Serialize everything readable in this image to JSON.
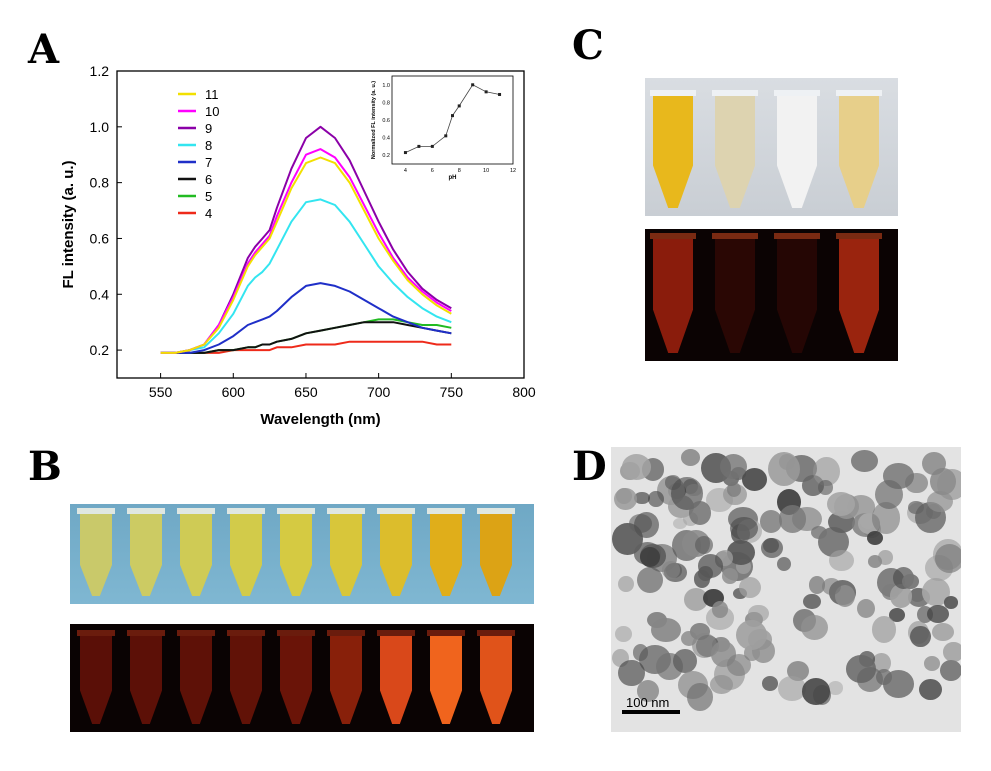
{
  "panels": {
    "a": "A",
    "b": "B",
    "c": "C",
    "d": "D"
  },
  "chart_data": {
    "type": "line",
    "xlabel": "Wavelength (nm)",
    "ylabel": "FL intensity (a. u.)",
    "xlim": [
      520,
      800
    ],
    "ylim": [
      0.1,
      1.2
    ],
    "xticks": [
      550,
      600,
      650,
      700,
      750,
      800
    ],
    "yticks": [
      0.2,
      0.4,
      0.6,
      0.8,
      1.0,
      1.2
    ],
    "legend_placement": "top-left",
    "x": [
      550,
      560,
      570,
      580,
      590,
      600,
      610,
      615,
      620,
      625,
      630,
      640,
      650,
      660,
      670,
      680,
      690,
      700,
      710,
      720,
      730,
      740,
      750
    ],
    "series": [
      {
        "name": "11",
        "color": "#f2e000",
        "values": [
          0.19,
          0.19,
          0.2,
          0.22,
          0.28,
          0.38,
          0.5,
          0.54,
          0.57,
          0.6,
          0.66,
          0.78,
          0.87,
          0.89,
          0.87,
          0.8,
          0.7,
          0.6,
          0.52,
          0.45,
          0.4,
          0.36,
          0.33
        ]
      },
      {
        "name": "10",
        "color": "#ff00ff",
        "values": [
          0.19,
          0.19,
          0.2,
          0.22,
          0.29,
          0.39,
          0.51,
          0.55,
          0.58,
          0.61,
          0.68,
          0.8,
          0.9,
          0.92,
          0.89,
          0.82,
          0.72,
          0.62,
          0.53,
          0.46,
          0.41,
          0.37,
          0.34
        ]
      },
      {
        "name": "9",
        "color": "#8b00a8",
        "values": [
          0.19,
          0.19,
          0.2,
          0.22,
          0.29,
          0.4,
          0.53,
          0.57,
          0.6,
          0.63,
          0.71,
          0.85,
          0.96,
          1.0,
          0.96,
          0.88,
          0.77,
          0.66,
          0.56,
          0.48,
          0.42,
          0.38,
          0.35
        ]
      },
      {
        "name": "8",
        "color": "#33e5f0",
        "values": [
          0.19,
          0.19,
          0.2,
          0.21,
          0.26,
          0.33,
          0.43,
          0.46,
          0.48,
          0.51,
          0.56,
          0.66,
          0.73,
          0.74,
          0.72,
          0.66,
          0.58,
          0.5,
          0.44,
          0.39,
          0.35,
          0.32,
          0.3
        ]
      },
      {
        "name": "7",
        "color": "#1f2fc8",
        "values": [
          0.19,
          0.19,
          0.19,
          0.2,
          0.22,
          0.25,
          0.29,
          0.3,
          0.31,
          0.32,
          0.34,
          0.39,
          0.43,
          0.44,
          0.43,
          0.41,
          0.38,
          0.35,
          0.32,
          0.3,
          0.28,
          0.27,
          0.26
        ]
      },
      {
        "name": "6",
        "color": "#111111",
        "values": [
          0.19,
          0.19,
          0.19,
          0.19,
          0.2,
          0.2,
          0.21,
          0.21,
          0.22,
          0.22,
          0.23,
          0.24,
          0.26,
          0.27,
          0.28,
          0.29,
          0.3,
          0.3,
          0.3,
          0.29,
          0.28,
          0.27,
          0.26
        ]
      },
      {
        "name": "5",
        "color": "#22bb22",
        "values": [
          0.19,
          0.19,
          0.19,
          0.19,
          0.2,
          0.2,
          0.21,
          0.21,
          0.22,
          0.22,
          0.23,
          0.24,
          0.26,
          0.27,
          0.28,
          0.29,
          0.3,
          0.31,
          0.31,
          0.3,
          0.29,
          0.29,
          0.28
        ]
      },
      {
        "name": "4",
        "color": "#ee2a1a",
        "values": [
          0.19,
          0.19,
          0.19,
          0.19,
          0.19,
          0.2,
          0.2,
          0.2,
          0.2,
          0.2,
          0.21,
          0.21,
          0.22,
          0.22,
          0.22,
          0.23,
          0.23,
          0.23,
          0.23,
          0.23,
          0.23,
          0.22,
          0.22
        ]
      }
    ],
    "inset": {
      "type": "scatter",
      "xlabel": "pH",
      "ylabel": "Normalized FL intensity (a. u.)",
      "xlim": [
        3,
        12
      ],
      "ylim": [
        0.1,
        1.1
      ],
      "xticks": [
        4,
        6,
        8,
        10,
        12
      ],
      "yticks": [
        0.2,
        0.4,
        0.6,
        0.8,
        1.0
      ],
      "x": [
        4,
        5,
        6,
        7,
        7.5,
        8,
        9,
        10,
        11
      ],
      "y": [
        0.23,
        0.3,
        0.3,
        0.42,
        0.65,
        0.76,
        1.0,
        0.92,
        0.89
      ]
    }
  },
  "scale_bar": {
    "label": "100 nm"
  }
}
